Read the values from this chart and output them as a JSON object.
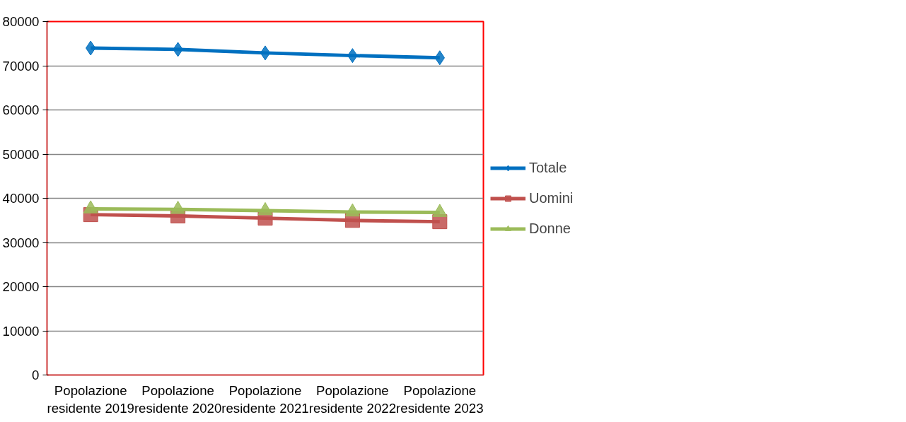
{
  "chart_data": {
    "type": "line",
    "categories": [
      "Popolazione residente 2019",
      "Popolazione residente 2020",
      "Popolazione residente 2021",
      "Popolazione residente 2022",
      "Popolazione residente 2023"
    ],
    "series": [
      {
        "name": "Totale",
        "color": "#0070c0",
        "marker": "diamond",
        "values": [
          74000,
          73700,
          72900,
          72300,
          71800
        ]
      },
      {
        "name": "Uomini",
        "color": "#c0504d",
        "marker": "square",
        "values": [
          36300,
          36000,
          35500,
          35000,
          34700
        ]
      },
      {
        "name": "Donne",
        "color": "#9bbb59",
        "marker": "triangle",
        "values": [
          37600,
          37500,
          37200,
          36900,
          36800
        ]
      }
    ],
    "ylim": [
      0,
      80000
    ],
    "yticks": [
      0,
      10000,
      20000,
      30000,
      40000,
      50000,
      60000,
      70000,
      80000
    ],
    "grid": "y",
    "legend": "right",
    "line_style": "solid"
  }
}
